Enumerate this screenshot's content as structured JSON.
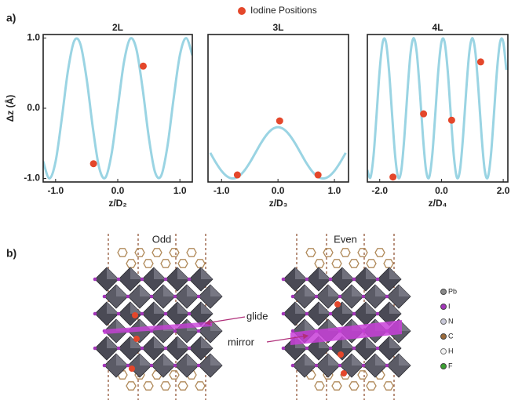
{
  "panels": [
    "a)",
    "b)"
  ],
  "chart_data": [
    {
      "type": "line",
      "title": "2L",
      "x_label": "z/D₂",
      "y_label": "Δz (Å)",
      "xlim": [
        -1.2,
        1.2
      ],
      "ylim": [
        -1.05,
        1.05
      ],
      "xticks": [
        {
          "value": -1,
          "label": "-1.0"
        },
        {
          "value": 0,
          "label": "0.0"
        },
        {
          "value": 1,
          "label": "1.0"
        }
      ],
      "yticks": [
        {
          "value": -1,
          "label": "-1.0"
        },
        {
          "value": 0,
          "label": "0.0"
        },
        {
          "value": 1,
          "label": "1.0"
        }
      ],
      "series": [
        {
          "type": "line",
          "color": "#9ad4e3",
          "x": [
            -1.2,
            -1.1,
            -1.0,
            -0.9,
            -0.8,
            -0.7,
            -0.6,
            -0.5,
            -0.4,
            -0.3,
            -0.2,
            -0.1,
            0.0,
            0.1,
            0.2,
            0.3,
            0.4,
            0.5,
            0.6,
            0.7,
            0.8,
            0.9,
            1.0,
            1.1,
            1.2
          ],
          "values": [
            -0.756,
            -1.0,
            -0.757,
            -0.144,
            0.541,
            0.959,
            0.91,
            0.415,
            -0.281,
            -0.842,
            -0.99,
            -0.654,
            0.0,
            0.655,
            0.99,
            0.841,
            0.282,
            -0.415,
            -0.91,
            -0.959,
            -0.541,
            0.143,
            0.756,
            1.0,
            0.756
          ]
        },
        {
          "type": "scatter",
          "name": "Iodine Positions",
          "color": "#e4472b",
          "x": [
            -0.39,
            0.41
          ],
          "values": [
            -0.79,
            0.6
          ]
        }
      ]
    },
    {
      "type": "line",
      "title": "3L",
      "x_label": "z/D₃",
      "xlim": [
        -1.24,
        1.25
      ],
      "ylim": [
        -1.05,
        1.05
      ],
      "xticks": [
        {
          "value": -1,
          "label": "-1.0"
        },
        {
          "value": 0,
          "label": "0.0"
        },
        {
          "value": 1,
          "label": "1.0"
        }
      ],
      "series": [
        {
          "type": "line",
          "color": "#9ad4e3",
          "x": [
            -1.2,
            -1.1,
            -1.0,
            -0.9,
            -0.8,
            -0.7,
            -0.6,
            -0.5,
            -0.4,
            -0.3,
            -0.2,
            -0.1,
            0.0,
            0.1,
            0.2,
            0.3,
            0.4,
            0.5,
            0.6,
            0.7,
            0.8,
            0.9,
            1.0,
            1.1,
            1.2
          ],
          "values": [
            -0.635,
            -0.775,
            -0.893,
            -0.972,
            -1.0,
            -0.972,
            -0.893,
            -0.775,
            -0.635,
            -0.495,
            -0.377,
            -0.298,
            -0.27,
            -0.298,
            -0.377,
            -0.495,
            -0.635,
            -0.775,
            -0.893,
            -0.972,
            -1.0,
            -0.972,
            -0.893,
            -0.775,
            -0.635
          ]
        },
        {
          "type": "scatter",
          "color": "#e4472b",
          "x": [
            -0.72,
            0.03,
            0.71
          ],
          "values": [
            -0.95,
            -0.18,
            -0.95
          ]
        }
      ]
    },
    {
      "type": "line",
      "title": "4L",
      "x_label": "z/D₄",
      "xlim": [
        -2.4,
        2.15
      ],
      "ylim": [
        -1.05,
        1.05
      ],
      "xticks": [
        {
          "value": -2,
          "label": "-2.0"
        },
        {
          "value": 0,
          "label": "0.0"
        },
        {
          "value": 2,
          "label": "2.0"
        }
      ],
      "series": [
        {
          "type": "line",
          "color": "#9ad4e3",
          "x": [
            -2.4,
            -2.3,
            -2.2,
            -2.1,
            -2.0,
            -1.9,
            -1.8,
            -1.7,
            -1.6,
            -1.5,
            -1.4,
            -1.3,
            -1.2,
            -1.1,
            -1.0,
            -0.9,
            -0.8,
            -0.7,
            -0.6,
            -0.5,
            -0.4,
            -0.3,
            -0.2,
            -0.1,
            0.0,
            0.1,
            0.2,
            0.3,
            0.4,
            0.5,
            0.6,
            0.7,
            0.8,
            0.9,
            1.0,
            1.1,
            1.2,
            1.3,
            1.4,
            1.5,
            1.6,
            1.7,
            1.8,
            1.9,
            2.0,
            2.1
          ],
          "values": [
            -0.88,
            -0.986,
            -0.676,
            -0.082,
            0.548,
            0.945,
            0.946,
            0.547,
            -0.082,
            -0.677,
            -0.986,
            -0.88,
            -0.401,
            0.245,
            0.789,
            1.0,
            0.789,
            0.245,
            -0.401,
            -0.88,
            -0.986,
            -0.676,
            -0.082,
            0.548,
            0.945,
            0.946,
            0.547,
            -0.082,
            -0.677,
            -0.986,
            -0.88,
            -0.401,
            0.245,
            0.789,
            1.0,
            0.789,
            0.245,
            -0.401,
            -0.88,
            -0.986,
            -0.676,
            -0.082,
            0.548,
            0.945,
            0.946,
            0.547
          ]
        },
        {
          "type": "scatter",
          "color": "#e4472b",
          "x": [
            -1.57,
            -0.58,
            0.33,
            1.27
          ],
          "values": [
            -0.98,
            -0.08,
            -0.17,
            0.66
          ]
        }
      ]
    }
  ],
  "panel_b": {
    "structures": [
      "Odd",
      "Even"
    ],
    "annotations": [
      "glide",
      "mirror"
    ],
    "legend": [
      "Pb",
      "I",
      "N",
      "C",
      "H",
      "F"
    ]
  }
}
